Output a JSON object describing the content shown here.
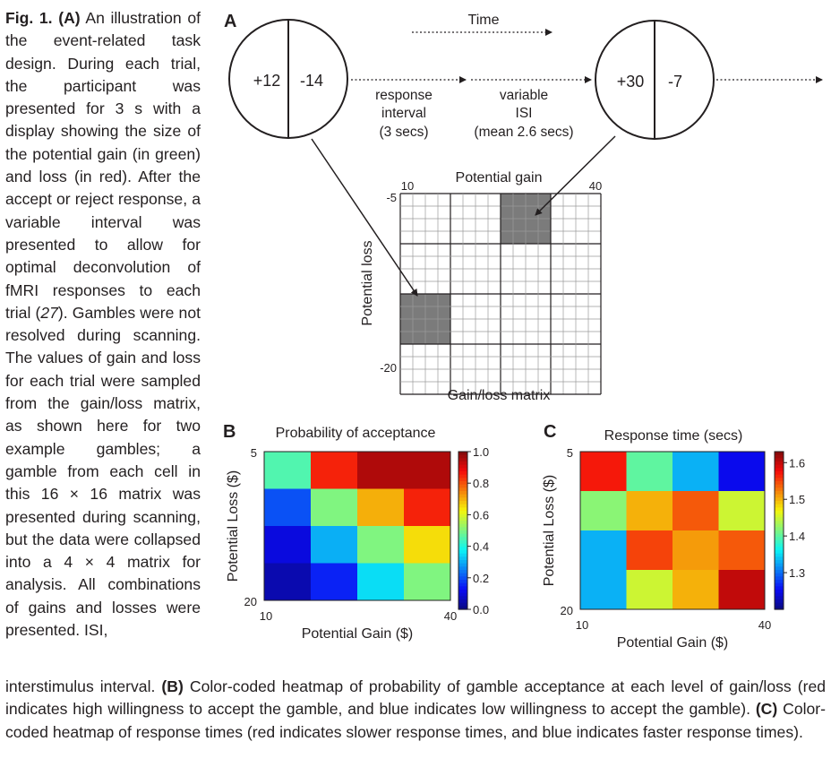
{
  "caption": {
    "fig_label": "Fig. 1.",
    "part_a_label": "(A)",
    "part_a_pre": "An illustration of the event-related task design. During each trial, the participant was presented for 3 s with a display showing the size of the potential gain (in green) and loss (in red). After the accept or reject response, a variable interval was presented to allow for optimal deconvolution of fMRI responses to each trial (",
    "part_a_ref": "27",
    "part_a_post": "). Gambles were not resolved during scanning. The values of gain and loss for each trial were sampled from the gain/loss matrix, as shown here for two example gambles; a gamble from each cell in this 16 × 16 matrix was presented during scanning, but the data were collapsed into a 4 × 4 matrix for analysis. All combinations of gains and losses were presented. ISI,",
    "bottom_pre": "interstimulus interval.",
    "part_b_label": "(B)",
    "part_b_text": "Color-coded heatmap of probability of gamble acceptance at each level of gain/loss (red indicates high willingness to accept the gamble, and blue indicates low willingness to accept the gamble).",
    "part_c_label": "(C)",
    "part_c_text": "Color-coded heatmap of response times (red indicates slower response times, and blue indicates faster response times)."
  },
  "panel_a": {
    "label": "A",
    "time_label": "Time",
    "circle1": {
      "gain": "+12",
      "loss": "-14"
    },
    "circle2": {
      "gain": "+30",
      "loss": "-7"
    },
    "response_interval": [
      "response",
      "interval",
      "(3 secs)"
    ],
    "variable_isi": [
      "variable",
      "ISI",
      "(mean 2.6 secs)"
    ],
    "matrix_title": "Potential gain",
    "matrix_xlabel": "Gain/loss matrix",
    "matrix_ylabel": "Potential loss",
    "gain_min": "10",
    "gain_max": "40",
    "loss_min": "-5",
    "loss_max": "-20",
    "grid_cells": 16,
    "highlighted_cells": [
      {
        "row": 0,
        "col": 2
      },
      {
        "row": 2,
        "col": 0
      }
    ],
    "colors": {
      "gain": "#2e9a48",
      "loss": "#d9382e",
      "highlight": "#7b7b7b"
    }
  },
  "chart_data": [
    {
      "type": "heatmap",
      "panel": "B",
      "title": "Probability of acceptance",
      "xlabel": "Potential Gain ($)",
      "ylabel": "Potential Loss ($)",
      "x_ticks": [
        "10",
        "40"
      ],
      "y_ticks": [
        "5",
        "20"
      ],
      "values": [
        [
          0.45,
          0.85,
          0.95,
          0.95
        ],
        [
          0.2,
          0.5,
          0.7,
          0.85
        ],
        [
          0.1,
          0.3,
          0.5,
          0.65
        ],
        [
          0.05,
          0.15,
          0.35,
          0.5
        ]
      ],
      "colorbar": {
        "min": 0.0,
        "max": 1.0,
        "ticks": [
          "0.0",
          "0.2",
          "0.4",
          "0.6",
          "0.8",
          "1.0"
        ]
      }
    },
    {
      "type": "heatmap",
      "panel": "C",
      "title": "Response time (secs)",
      "xlabel": "Potential Gain ($)",
      "ylabel": "Potential Loss ($)",
      "x_ticks": [
        "10",
        "40"
      ],
      "y_ticks": [
        "5",
        "20"
      ],
      "values": [
        [
          1.57,
          1.4,
          1.33,
          1.25
        ],
        [
          1.42,
          1.5,
          1.54,
          1.45
        ],
        [
          1.33,
          1.55,
          1.51,
          1.54
        ],
        [
          1.33,
          1.45,
          1.5,
          1.6
        ]
      ],
      "colorbar": {
        "min": 1.2,
        "max": 1.63,
        "ticks": [
          "1.3",
          "1.4",
          "1.5",
          "1.6"
        ]
      }
    }
  ]
}
